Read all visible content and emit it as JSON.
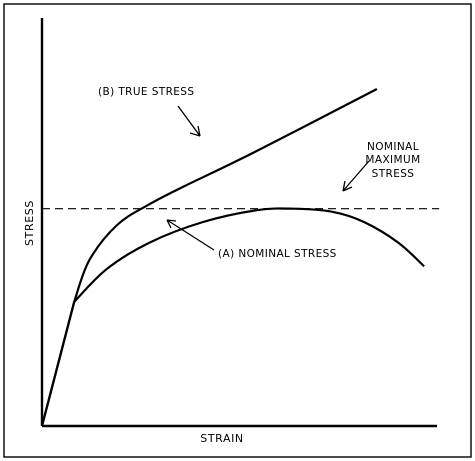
{
  "chart_data": {
    "type": "line",
    "title": "",
    "xlabel": "STRAIN",
    "ylabel": "STRESS",
    "grid": false,
    "legend": "none",
    "series": [
      {
        "name": "(B) TRUE STRESS",
        "label_text": "(B)  TRUE  STRESS",
        "points": [
          [
            0,
            0
          ],
          [
            0.15,
            0.42
          ],
          [
            0.22,
            0.56
          ],
          [
            0.35,
            0.68
          ],
          [
            0.5,
            0.75
          ],
          [
            0.66,
            0.81
          ],
          [
            1.0,
            0.93
          ],
          [
            1.56,
            1.14
          ]
        ]
      },
      {
        "name": "(A) NOMINAL STRESS",
        "label_text": "(A)  NOMINAL  STRESS",
        "points": [
          [
            0,
            0
          ],
          [
            0.15,
            0.42
          ],
          [
            0.3,
            0.53
          ],
          [
            0.5,
            0.62
          ],
          [
            0.75,
            0.69
          ],
          [
            1.0,
            0.73
          ],
          [
            1.17,
            0.735
          ],
          [
            1.35,
            0.725
          ],
          [
            1.5,
            0.69
          ],
          [
            1.66,
            0.62
          ],
          [
            1.78,
            0.54
          ]
        ]
      },
      {
        "name": "NOMINAL MAXIMUM STRESS",
        "label_lines": [
          "NOMINAL",
          "MAXIMUM",
          "STRESS"
        ],
        "style": "dashed",
        "points": [
          [
            0,
            0.735
          ],
          [
            1.85,
            0.735
          ]
        ]
      }
    ],
    "xlim": [
      0,
      1.84
    ],
    "ylim": [
      0,
      1.38
    ]
  }
}
